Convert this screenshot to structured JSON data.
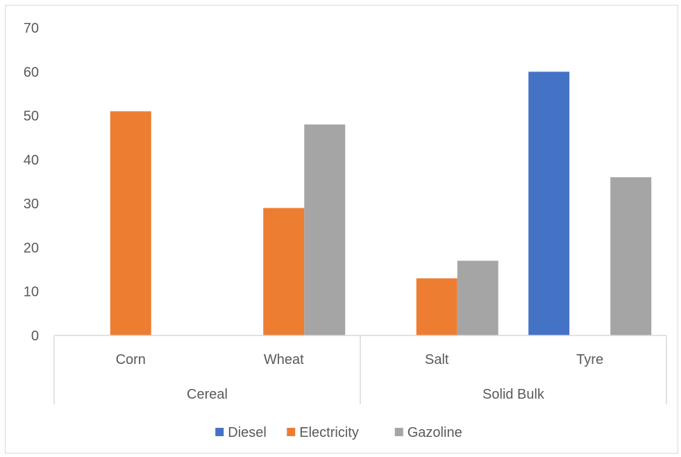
{
  "chart_data": {
    "type": "bar",
    "title": "",
    "xlabel": "",
    "ylabel": "",
    "ylim": [
      0,
      70
    ],
    "yticks": [
      0,
      10,
      20,
      30,
      40,
      50,
      60,
      70
    ],
    "groups": [
      {
        "label": "Cereal",
        "categories": [
          "Corn",
          "Wheat"
        ]
      },
      {
        "label": "Solid Bulk",
        "categories": [
          "Salt",
          "Tyre"
        ]
      }
    ],
    "categories": [
      "Corn",
      "Wheat",
      "Salt",
      "Tyre"
    ],
    "series": [
      {
        "name": "Diesel",
        "color": "#4472c4",
        "values": [
          null,
          null,
          null,
          60
        ]
      },
      {
        "name": "Electricity",
        "color": "#ed7d31",
        "values": [
          51,
          29,
          13,
          null
        ]
      },
      {
        "name": "Gazoline",
        "color": "#a5a5a5",
        "values": [
          null,
          48,
          17,
          36
        ]
      }
    ],
    "grid": false,
    "legend": "bottom"
  }
}
